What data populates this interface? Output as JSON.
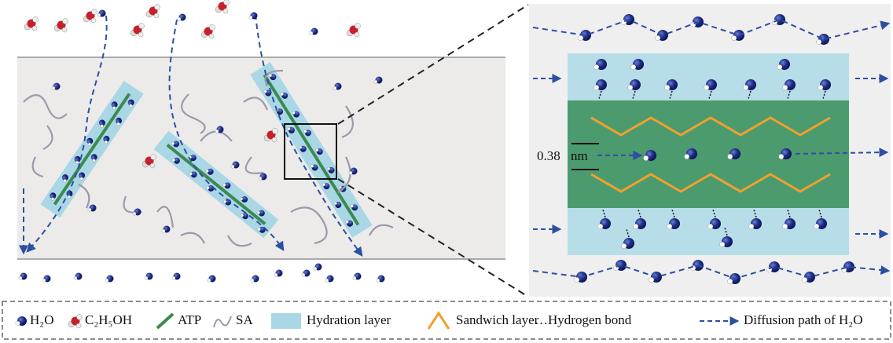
{
  "scale": {
    "value": "0.38",
    "unit": "nm"
  },
  "legend": [
    "H₂O",
    "C₂H₅OH",
    "ATP",
    "SA",
    "Hydration layer",
    "Sandwich layer",
    "…Hydrogen bond",
    "Diffusion path of H₂O"
  ]
}
